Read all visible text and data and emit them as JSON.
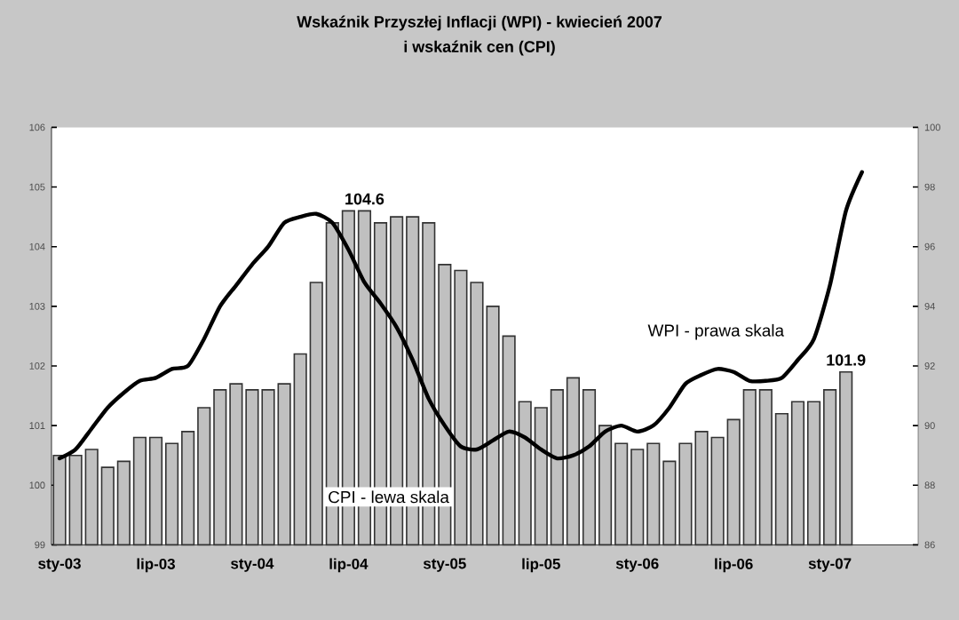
{
  "chart_data": {
    "type": "bar",
    "title": "Wskaźnik Przyszłej Inflacji (WPI) - kwiecień 2007",
    "subtitle": "i wskaźnik cen (CPI)",
    "categories": [
      "sty-03",
      null,
      null,
      null,
      null,
      null,
      "lip-03",
      null,
      null,
      null,
      null,
      null,
      "sty-04",
      null,
      null,
      null,
      null,
      null,
      "lip-04",
      null,
      null,
      null,
      null,
      null,
      "sty-05",
      null,
      null,
      null,
      null,
      null,
      "lip-05",
      null,
      null,
      null,
      null,
      null,
      "sty-06",
      null,
      null,
      null,
      null,
      null,
      "lip-06",
      null,
      null,
      null,
      null,
      null,
      "sty-07",
      null,
      null,
      null,
      null,
      null
    ],
    "series": [
      {
        "name": "CPI - lewa skala",
        "color": "#c0c0c0",
        "values": [
          100.5,
          100.5,
          100.6,
          100.3,
          100.4,
          100.8,
          100.8,
          100.7,
          100.9,
          101.3,
          101.6,
          101.7,
          101.6,
          101.6,
          101.7,
          102.2,
          103.4,
          104.4,
          104.6,
          104.6,
          104.4,
          104.5,
          104.5,
          104.4,
          103.7,
          103.6,
          103.4,
          103.0,
          102.5,
          101.4,
          101.3,
          101.6,
          101.8,
          101.6,
          101.0,
          100.7,
          100.6,
          100.7,
          100.4,
          100.7,
          100.9,
          100.8,
          101.1,
          101.6,
          101.6,
          101.2,
          101.4,
          101.4,
          101.6,
          101.9,
          null,
          null,
          null,
          null
        ],
        "value_labels": [
          null,
          null,
          null,
          null,
          null,
          null,
          null,
          null,
          null,
          null,
          null,
          null,
          null,
          null,
          null,
          null,
          null,
          null,
          null,
          "104.6",
          null,
          null,
          null,
          null,
          null,
          null,
          null,
          null,
          null,
          null,
          null,
          null,
          null,
          null,
          null,
          null,
          null,
          null,
          null,
          null,
          null,
          null,
          null,
          null,
          null,
          null,
          null,
          null,
          null,
          "101.9",
          null,
          null,
          null,
          null
        ]
      },
      {
        "name": "WPI - prawa skala",
        "type": "line",
        "color": "#000000",
        "axis": "y2",
        "values": [
          88.9,
          89.2,
          89.9,
          90.6,
          91.1,
          91.5,
          91.6,
          91.9,
          92.0,
          92.9,
          94.0,
          94.7,
          95.4,
          96.0,
          96.8,
          97.0,
          97.1,
          96.8,
          95.9,
          94.8,
          94.1,
          93.3,
          92.2,
          90.9,
          90.0,
          89.3,
          89.2,
          89.5,
          89.8,
          89.6,
          89.2,
          88.9,
          89.0,
          89.3,
          89.8,
          90.0,
          89.8,
          90.0,
          90.6,
          91.4,
          91.7,
          91.9,
          91.8,
          91.5,
          91.5,
          91.6,
          92.2,
          92.9,
          94.7,
          97.2,
          98.5,
          null,
          null,
          null
        ]
      }
    ],
    "ylim": [
      99,
      106
    ],
    "yticks": [
      99,
      100,
      101,
      102,
      103,
      104,
      105,
      106
    ],
    "y2lim": [
      86,
      100
    ],
    "y2ticks": [
      86,
      88,
      90,
      92,
      94,
      96,
      98,
      100
    ],
    "grid": false,
    "legend": false,
    "marker": "none"
  }
}
